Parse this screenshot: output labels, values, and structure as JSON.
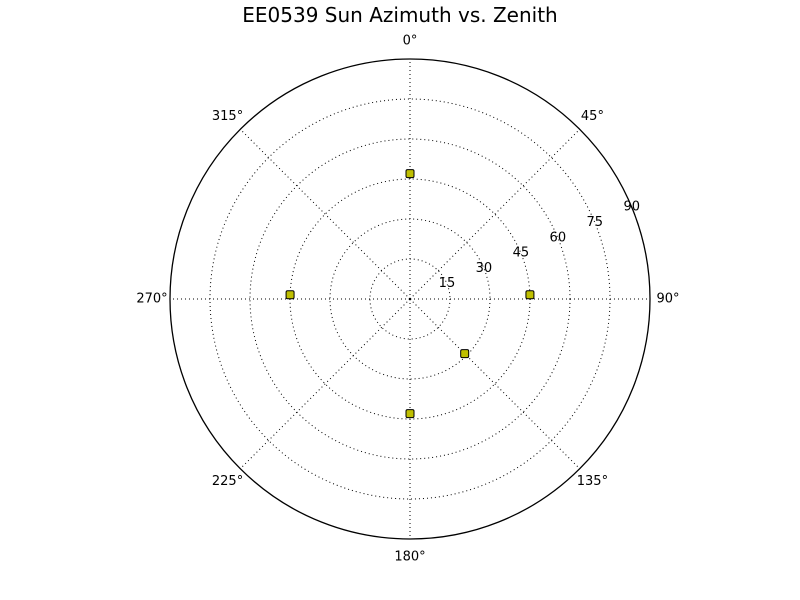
{
  "chart_data": {
    "type": "scatter",
    "projection": "polar",
    "title": "EE0539 Sun Azimuth vs. Zenith",
    "theta_direction": "clockwise",
    "theta_zero_location": "top",
    "theta_ticks": [
      0,
      45,
      90,
      135,
      180,
      225,
      270,
      315
    ],
    "theta_tick_labels": [
      "0°",
      "45°",
      "90°",
      "135°",
      "180°",
      "225°",
      "270°",
      "315°"
    ],
    "r_ticks": [
      15,
      30,
      45,
      60,
      75,
      90
    ],
    "r_tick_labels": [
      "15",
      "30",
      "45",
      "60",
      "75",
      "90"
    ],
    "rlim": [
      0,
      90
    ],
    "r_label_angle": 67.5,
    "grid": true,
    "marker_color": "#bfbf00",
    "series": [
      {
        "points": [
          {
            "theta": 0,
            "r": 47
          },
          {
            "theta": 88,
            "r": 45
          },
          {
            "theta": 135,
            "r": 29
          },
          {
            "theta": 180,
            "r": 43
          },
          {
            "theta": 272,
            "r": 45
          }
        ]
      }
    ]
  }
}
